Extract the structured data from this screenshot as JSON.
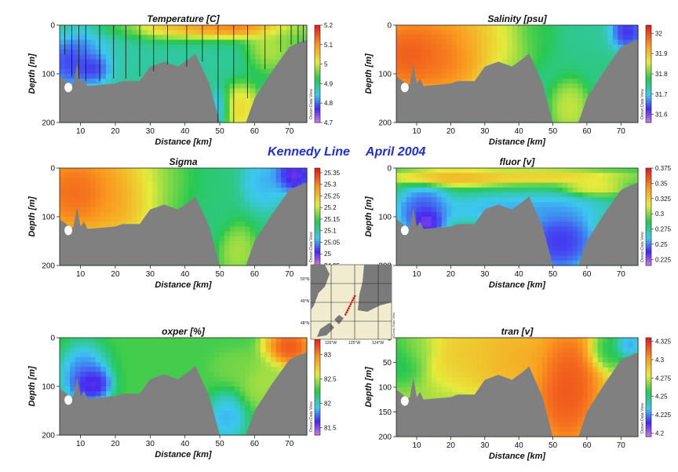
{
  "figure": {
    "title_part1": "Kennedy Line",
    "title_part2": "April 2004",
    "title_color": "#1f2fd0",
    "brand": "Ocean Data View",
    "terrain_color": "#808080"
  },
  "inset_map": {
    "lat_labels": [
      "50°N",
      "49°N",
      "48°N"
    ],
    "lon_labels": [
      "126°W",
      "125°W",
      "124°W"
    ],
    "station_color": "#e01010"
  },
  "chart_data": [
    {
      "id": "temperature",
      "type": "heatmap",
      "title": "Temperature [C]",
      "xlabel": "Distance [km]",
      "ylabel": "Depth [m]",
      "xlim": [
        4,
        75
      ],
      "ylim": [
        200,
        0
      ],
      "xticks": [
        10,
        20,
        30,
        40,
        50,
        60,
        70
      ],
      "yticks": [
        0,
        100,
        200
      ],
      "colorbar": {
        "min": 4.7,
        "max": 5.2,
        "ticks": [
          "5.2",
          "5.1",
          "5",
          "4.9",
          "4.8",
          "4.7"
        ]
      },
      "station_casts": [
        {
          "x": 5.5,
          "depth": 60
        },
        {
          "x": 7.5,
          "depth": 105
        },
        {
          "x": 9.5,
          "depth": 110
        },
        {
          "x": 11.5,
          "depth": 115
        },
        {
          "x": 15.5,
          "depth": 115
        },
        {
          "x": 19.5,
          "depth": 110
        },
        {
          "x": 23,
          "depth": 110
        },
        {
          "x": 27,
          "depth": 105
        },
        {
          "x": 31,
          "depth": 95
        },
        {
          "x": 35,
          "depth": 80
        },
        {
          "x": 40.5,
          "depth": 85
        },
        {
          "x": 45,
          "depth": 75
        },
        {
          "x": 49.5,
          "depth": 200
        },
        {
          "x": 54,
          "depth": 200
        },
        {
          "x": 58,
          "depth": 150
        },
        {
          "x": 63,
          "depth": 90
        },
        {
          "x": 67.5,
          "depth": 55
        },
        {
          "x": 70.5,
          "depth": 40
        },
        {
          "x": 72.5,
          "depth": 38
        },
        {
          "x": 74,
          "depth": 35
        }
      ],
      "field_blobs": [
        {
          "x": 5,
          "z": 0,
          "rx": 5,
          "rz": 40,
          "v": 4.88
        },
        {
          "x": 7,
          "z": 70,
          "rx": 5,
          "rz": 40,
          "v": 4.72
        },
        {
          "x": 12,
          "z": 40,
          "rx": 7,
          "rz": 50,
          "v": 4.79
        },
        {
          "x": 14,
          "z": 85,
          "rx": 4,
          "rz": 25,
          "v": 4.7
        },
        {
          "x": 22,
          "z": 30,
          "rx": 6,
          "rz": 45,
          "v": 4.88
        },
        {
          "x": 37,
          "z": 8,
          "rx": 20,
          "rz": 20,
          "v": 5.08
        },
        {
          "x": 52,
          "z": 5,
          "rx": 14,
          "rz": 15,
          "v": 5.18
        },
        {
          "x": 30,
          "z": 70,
          "rx": 25,
          "rz": 50,
          "v": 4.88
        },
        {
          "x": 56,
          "z": 170,
          "rx": 4,
          "rz": 40,
          "v": 5.05
        },
        {
          "x": 50,
          "z": 170,
          "rx": 2,
          "rz": 30,
          "v": 4.82
        },
        {
          "x": 64,
          "z": 45,
          "rx": 5,
          "rz": 40,
          "v": 5.02
        },
        {
          "x": 70,
          "z": 20,
          "rx": 7,
          "rz": 30,
          "v": 4.96
        }
      ],
      "base": 4.9
    },
    {
      "id": "salinity",
      "type": "heatmap",
      "title": "Salinity [psu]",
      "xlabel": "Distance [km]",
      "ylabel": "Depth [m]",
      "xlim": [
        4,
        75
      ],
      "ylim": [
        200,
        0
      ],
      "xticks": [
        10,
        20,
        30,
        40,
        50,
        60,
        70
      ],
      "yticks": [
        0,
        100,
        200
      ],
      "colorbar": {
        "min": 31.56,
        "max": 32.04,
        "ticks": [
          "32",
          "31.9",
          "31.8",
          "31.7",
          "31.6"
        ]
      },
      "field_blobs": [
        {
          "x": 8,
          "z": 60,
          "rx": 12,
          "rz": 70,
          "v": 32.03
        },
        {
          "x": 20,
          "z": 60,
          "rx": 8,
          "rz": 70,
          "v": 31.98
        },
        {
          "x": 30,
          "z": 30,
          "rx": 8,
          "rz": 50,
          "v": 31.92
        },
        {
          "x": 37,
          "z": 30,
          "rx": 6,
          "rz": 50,
          "v": 31.84
        },
        {
          "x": 44,
          "z": 20,
          "rx": 5,
          "rz": 40,
          "v": 31.78
        },
        {
          "x": 55,
          "z": 170,
          "rx": 4,
          "rz": 40,
          "v": 31.86
        },
        {
          "x": 62,
          "z": 20,
          "rx": 6,
          "rz": 30,
          "v": 31.74
        },
        {
          "x": 71,
          "z": 15,
          "rx": 4,
          "rz": 25,
          "v": 31.6
        }
      ],
      "base": 31.75
    },
    {
      "id": "sigma",
      "type": "heatmap",
      "title": "Sigma",
      "xlabel": "Distance [km]",
      "ylabel": "Depth [m]",
      "xlim": [
        4,
        75
      ],
      "ylim": [
        200,
        0
      ],
      "xticks": [
        10,
        20,
        30,
        40,
        50,
        60,
        70
      ],
      "yticks": [
        0,
        100,
        200
      ],
      "colorbar": {
        "min": 24.95,
        "max": 25.37,
        "ticks": [
          "25.35",
          "25.3",
          "25.25",
          "25.2",
          "25.15",
          "25.1",
          "25.05",
          "25",
          "24.95"
        ]
      },
      "field_blobs": [
        {
          "x": 9,
          "z": 50,
          "rx": 12,
          "rz": 70,
          "v": 25.35
        },
        {
          "x": 22,
          "z": 50,
          "rx": 7,
          "rz": 70,
          "v": 25.28
        },
        {
          "x": 30,
          "z": 30,
          "rx": 7,
          "rz": 60,
          "v": 25.21
        },
        {
          "x": 38,
          "z": 30,
          "rx": 6,
          "rz": 60,
          "v": 25.16
        },
        {
          "x": 46,
          "z": 60,
          "rx": 6,
          "rz": 80,
          "v": 25.12
        },
        {
          "x": 55,
          "z": 170,
          "rx": 4,
          "rz": 40,
          "v": 25.2
        },
        {
          "x": 63,
          "z": 30,
          "rx": 5,
          "rz": 40,
          "v": 25.05
        },
        {
          "x": 71,
          "z": 15,
          "rx": 4,
          "rz": 25,
          "v": 24.97
        }
      ],
      "base": 25.12
    },
    {
      "id": "fluor",
      "type": "heatmap",
      "title": "fluor [v]",
      "xlabel": "Distance [km]",
      "ylabel": "Depth [m]",
      "xlim": [
        4,
        75
      ],
      "ylim": [
        200,
        0
      ],
      "xticks": [
        10,
        20,
        30,
        40,
        50,
        60,
        70
      ],
      "yticks": [
        0,
        100,
        200
      ],
      "colorbar": {
        "min": 0.215,
        "max": 0.375,
        "ticks": [
          "0.375",
          "0.35",
          "0.325",
          "0.3",
          "0.275",
          "0.25",
          "0.225"
        ]
      },
      "field_blobs": [
        {
          "x": 20,
          "z": 20,
          "rx": 12,
          "rz": 12,
          "v": 0.34
        },
        {
          "x": 45,
          "z": 18,
          "rx": 18,
          "rz": 10,
          "v": 0.33
        },
        {
          "x": 62,
          "z": 40,
          "rx": 6,
          "rz": 12,
          "v": 0.32
        },
        {
          "x": 12,
          "z": 90,
          "rx": 6,
          "rz": 40,
          "v": 0.235
        },
        {
          "x": 13,
          "z": 110,
          "rx": 3,
          "rz": 20,
          "v": 0.215
        },
        {
          "x": 40,
          "z": 85,
          "rx": 20,
          "rz": 25,
          "v": 0.25
        },
        {
          "x": 52,
          "z": 150,
          "rx": 8,
          "rz": 50,
          "v": 0.23
        }
      ],
      "base": 0.29
    },
    {
      "id": "oxper",
      "type": "heatmap",
      "title": "oxper [%]",
      "xlabel": "Distance [km]",
      "ylabel": "Depth [m]",
      "xlim": [
        4,
        75
      ],
      "ylim": [
        200,
        0
      ],
      "xticks": [
        10,
        20,
        30,
        40,
        50,
        60,
        70
      ],
      "yticks": [
        0,
        100,
        200
      ],
      "colorbar": {
        "min": 81.35,
        "max": 83.35,
        "ticks": [
          "83",
          "82.5",
          "82",
          "81.5"
        ]
      },
      "field_blobs": [
        {
          "x": 11,
          "z": 75,
          "rx": 5,
          "rz": 45,
          "v": 81.7
        },
        {
          "x": 13,
          "z": 95,
          "rx": 4,
          "rz": 25,
          "v": 81.4
        },
        {
          "x": 52,
          "z": 165,
          "rx": 4,
          "rz": 35,
          "v": 81.8
        },
        {
          "x": 55,
          "z": 60,
          "rx": 5,
          "rz": 25,
          "v": 82.4
        },
        {
          "x": 70,
          "z": 20,
          "rx": 5,
          "rz": 30,
          "v": 83.3
        },
        {
          "x": 63,
          "z": 90,
          "rx": 5,
          "rz": 40,
          "v": 82.5
        }
      ],
      "base": 82.3
    },
    {
      "id": "tran",
      "type": "heatmap",
      "title": "tran [v]",
      "xlabel": "Distance [km]",
      "ylabel": "Depth [m]",
      "xlim": [
        4,
        75
      ],
      "ylim": [
        200,
        0
      ],
      "xticks": [
        10,
        20,
        30,
        40,
        50,
        60,
        70
      ],
      "yticks": [
        0,
        50,
        100,
        150,
        200
      ],
      "colorbar": {
        "min": 4.195,
        "max": 4.33,
        "ticks": [
          "4.325",
          "4.3",
          "4.275",
          "4.25",
          "4.225",
          "4.2"
        ]
      },
      "field_blobs": [
        {
          "x": 5,
          "z": 40,
          "rx": 6,
          "rz": 40,
          "v": 4.25
        },
        {
          "x": 10,
          "z": 20,
          "rx": 5,
          "rz": 25,
          "v": 4.27
        },
        {
          "x": 25,
          "z": 30,
          "rx": 10,
          "rz": 50,
          "v": 4.29
        },
        {
          "x": 38,
          "z": 40,
          "rx": 10,
          "rz": 60,
          "v": 4.3
        },
        {
          "x": 54,
          "z": 100,
          "rx": 8,
          "rz": 100,
          "v": 4.325
        },
        {
          "x": 66,
          "z": 25,
          "rx": 4,
          "rz": 30,
          "v": 4.25
        },
        {
          "x": 72,
          "z": 15,
          "rx": 3,
          "rz": 20,
          "v": 4.22
        }
      ],
      "base": 4.27
    }
  ],
  "terrain_profile": [
    [
      4,
      105
    ],
    [
      6,
      115
    ],
    [
      7,
      125
    ],
    [
      8,
      120
    ],
    [
      9,
      80
    ],
    [
      10,
      120
    ],
    [
      11,
      110
    ],
    [
      12,
      125
    ],
    [
      20,
      120
    ],
    [
      22,
      115
    ],
    [
      27,
      115
    ],
    [
      30,
      85
    ],
    [
      34,
      75
    ],
    [
      38,
      85
    ],
    [
      41,
      70
    ],
    [
      43,
      58
    ],
    [
      47,
      120
    ],
    [
      50,
      200
    ],
    [
      57.5,
      200
    ],
    [
      60,
      150
    ],
    [
      65,
      95
    ],
    [
      70,
      45
    ],
    [
      73,
      35
    ],
    [
      75,
      30
    ]
  ]
}
